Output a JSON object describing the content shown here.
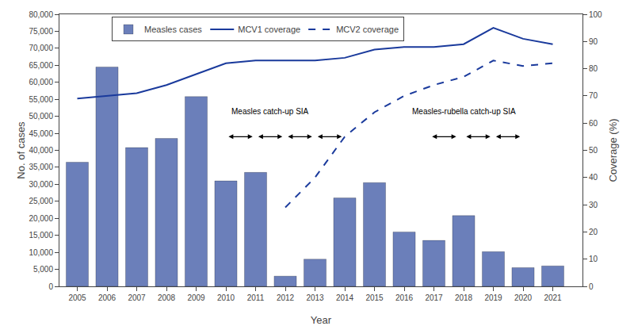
{
  "chart_data": {
    "type": "bar",
    "x": [
      2005,
      2006,
      2007,
      2008,
      2009,
      2010,
      2011,
      2012,
      2013,
      2014,
      2015,
      2016,
      2017,
      2018,
      2019,
      2020,
      2021
    ],
    "series": [
      {
        "name": "Measles cases",
        "type": "bar",
        "color": "#6b7fba",
        "values": [
          36500,
          64500,
          40800,
          43500,
          55800,
          31000,
          33500,
          3000,
          8000,
          26000,
          30500,
          16000,
          13500,
          20800,
          10200,
          5500,
          6000
        ]
      },
      {
        "name": "MCV1 coverage",
        "type": "line",
        "axis": "y2",
        "color": "#1a3a9c",
        "line_style": "solid",
        "values": [
          69,
          70,
          71,
          74,
          78,
          82,
          83,
          83,
          83,
          84,
          87,
          88,
          88,
          89,
          95,
          91,
          89
        ]
      },
      {
        "name": "MCV2 coverage",
        "type": "line",
        "axis": "y2",
        "color": "#1a3a9c",
        "line_style": "dashed",
        "values": [
          null,
          null,
          null,
          null,
          null,
          null,
          null,
          29,
          40,
          55,
          64,
          70,
          74,
          77,
          83,
          81,
          82
        ]
      }
    ],
    "xlabel": "Year",
    "ylabel": "No. of cases",
    "y2label": "Coverage (%)",
    "xlim": [
      2004.4,
      2022.0
    ],
    "xticks": [
      2005,
      2006,
      2007,
      2008,
      2009,
      2010,
      2011,
      2012,
      2013,
      2014,
      2015,
      2016,
      2017,
      2018,
      2019,
      2020,
      2021
    ],
    "ylim": [
      0,
      80000
    ],
    "yticks": [
      0,
      {
        "value": 5000,
        "label": "5,000"
      },
      {
        "value": 10000,
        "label": "10,000"
      },
      {
        "value": 15000,
        "label": "15,000"
      },
      {
        "value": 20000,
        "label": "20,000"
      },
      {
        "value": 25000,
        "label": "25,000"
      },
      {
        "value": 30000,
        "label": "30,000"
      },
      {
        "value": 35000,
        "label": "35,000"
      },
      {
        "value": 40000,
        "label": "40,000"
      },
      {
        "value": 45000,
        "label": "45,000"
      },
      {
        "value": 50000,
        "label": "50,000"
      },
      {
        "value": 55000,
        "label": "55,000"
      },
      {
        "value": 60000,
        "label": "60,000"
      },
      {
        "value": 65000,
        "label": "65,000"
      },
      {
        "value": 70000,
        "label": "70,000"
      },
      {
        "value": 75000,
        "label": "75,000"
      },
      {
        "value": 80000,
        "label": "80,000"
      }
    ],
    "y2lim": [
      0,
      100
    ],
    "y2ticks": [
      0,
      10,
      20,
      30,
      40,
      50,
      60,
      70,
      80,
      90,
      100
    ],
    "annotations": [
      {
        "text": "Measles catch-up SIA",
        "x": 2011.5,
        "y": 62,
        "axis": "y2",
        "arrow_y": 55,
        "arrows": [
          [
            2010.05,
            2010.9
          ],
          [
            2011.05,
            2011.9
          ],
          [
            2012.05,
            2012.9
          ],
          [
            2013.05,
            2013.9
          ]
        ]
      },
      {
        "text": "Measles-rubella catch-up SIA",
        "x": 2018.0,
        "y": 62,
        "axis": "y2",
        "arrow_y": 55,
        "arrows": [
          [
            2016.9,
            2017.75
          ],
          [
            2018.05,
            2018.9
          ],
          [
            2019.05,
            2019.9
          ]
        ]
      }
    ],
    "grid": false,
    "legend": "upper left"
  }
}
